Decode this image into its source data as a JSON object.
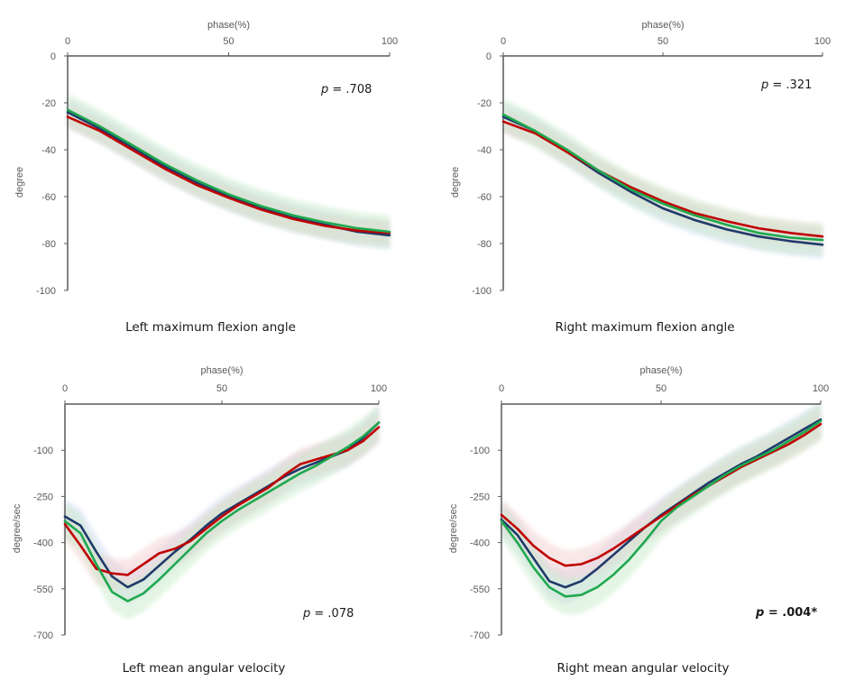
{
  "chart_data": [
    {
      "type": "line",
      "caption": "Left maximum flexion angle",
      "xlabel": "phase(%)",
      "ylabel": "degree",
      "xlim": [
        0,
        100
      ],
      "ylim": [
        -100,
        0
      ],
      "xticks": [
        0,
        50,
        100
      ],
      "yticks": [
        0,
        -20,
        -40,
        -60,
        -80,
        -100
      ],
      "x_axis_position": "top",
      "annotation": {
        "prefix": "p",
        "text": " = .708",
        "bold": false
      },
      "x": [
        0,
        10,
        20,
        30,
        40,
        50,
        60,
        70,
        80,
        90,
        100
      ],
      "series": [
        {
          "color": "#1f3a6b",
          "band_color": "#c9d4f2",
          "band": 6,
          "values": [
            -24,
            -31,
            -39,
            -47,
            -54,
            -60,
            -65,
            -69,
            -72,
            -75,
            -76.5
          ]
        },
        {
          "color": "#c00000",
          "band_color": "#f2caca",
          "band": 5,
          "values": [
            -26,
            -32,
            -40,
            -48,
            -55,
            -60.5,
            -65.5,
            -69.5,
            -72.5,
            -74.5,
            -75.5
          ]
        },
        {
          "color": "#1fa84f",
          "band_color": "#c6e8c6",
          "band": 7,
          "values": [
            -23,
            -30,
            -38,
            -46,
            -53,
            -59,
            -64,
            -68,
            -71,
            -73.5,
            -75
          ]
        }
      ]
    },
    {
      "type": "line",
      "caption": "Right maximum flexion angle",
      "xlabel": "phase(%)",
      "ylabel": "degree",
      "xlim": [
        0,
        100
      ],
      "ylim": [
        -100,
        0
      ],
      "xticks": [
        0,
        50,
        100
      ],
      "yticks": [
        0,
        -20,
        -40,
        -60,
        -80,
        -100
      ],
      "x_axis_position": "top",
      "annotation": {
        "prefix": "p",
        "text": " = .321",
        "bold": false
      },
      "x": [
        0,
        10,
        20,
        30,
        40,
        50,
        60,
        70,
        80,
        90,
        100
      ],
      "series": [
        {
          "color": "#1f3a6b",
          "band_color": "#c9d4f2",
          "band": 6,
          "values": [
            -26,
            -32,
            -41,
            -50,
            -58,
            -65,
            -70,
            -74,
            -77,
            -79,
            -80.5
          ]
        },
        {
          "color": "#c00000",
          "band_color": "#f2caca",
          "band": 5,
          "values": [
            -28,
            -33,
            -41,
            -49,
            -56,
            -62,
            -67,
            -70.5,
            -73.5,
            -75.5,
            -77
          ]
        },
        {
          "color": "#1fa84f",
          "band_color": "#c6e8c6",
          "band": 7,
          "values": [
            -25,
            -32,
            -40,
            -49,
            -57,
            -63,
            -68,
            -72,
            -75.5,
            -77.5,
            -78.5
          ]
        }
      ]
    },
    {
      "type": "line",
      "caption": "Left mean angular velocity",
      "xlabel": "phase(%)",
      "ylabel": "degree/sec",
      "xlim": [
        0,
        100
      ],
      "ylim": [
        -700,
        50
      ],
      "xticks": [
        0,
        50,
        100
      ],
      "yticks": [
        -100,
        -250,
        -400,
        -550,
        -700
      ],
      "x_axis_position": "top",
      "annotation": {
        "prefix": "p",
        "text": " = .078",
        "bold": false
      },
      "x": [
        0,
        5,
        10,
        15,
        20,
        25,
        30,
        35,
        40,
        45,
        50,
        55,
        60,
        65,
        70,
        75,
        80,
        85,
        90,
        95,
        100
      ],
      "series": [
        {
          "color": "#1f3a6b",
          "band_color": "#c9d4f2",
          "band": 55,
          "values": [
            -315,
            -345,
            -430,
            -510,
            -545,
            -520,
            -475,
            -430,
            -390,
            -345,
            -305,
            -275,
            -245,
            -215,
            -185,
            -160,
            -140,
            -120,
            -100,
            -60,
            -10
          ]
        },
        {
          "color": "#c00000",
          "band_color": "#f2caca",
          "band": 50,
          "values": [
            -340,
            -410,
            -485,
            -500,
            -505,
            -470,
            -435,
            -420,
            -395,
            -355,
            -315,
            -280,
            -250,
            -220,
            -180,
            -145,
            -130,
            -115,
            -100,
            -70,
            -25
          ]
        },
        {
          "color": "#1fa84f",
          "band_color": "#c6e8c6",
          "band": 60,
          "values": [
            -330,
            -370,
            -470,
            -560,
            -590,
            -565,
            -520,
            -470,
            -420,
            -370,
            -330,
            -295,
            -265,
            -235,
            -205,
            -175,
            -150,
            -120,
            -90,
            -55,
            -10
          ]
        }
      ]
    },
    {
      "type": "line",
      "caption": "Right mean angular velocity",
      "xlabel": "phase(%)",
      "ylabel": "degree/sec",
      "xlim": [
        0,
        100
      ],
      "ylim": [
        -700,
        50
      ],
      "xticks": [
        0,
        50,
        100
      ],
      "yticks": [
        -100,
        -250,
        -400,
        -550,
        -700
      ],
      "x_axis_position": "top",
      "annotation": {
        "prefix": "p",
        "text": " = .004*",
        "bold": true
      },
      "x": [
        0,
        5,
        10,
        15,
        20,
        25,
        30,
        35,
        40,
        45,
        50,
        55,
        60,
        65,
        70,
        75,
        80,
        85,
        90,
        95,
        100
      ],
      "series": [
        {
          "color": "#1f3a6b",
          "band_color": "#c9d4f2",
          "band": 55,
          "values": [
            -325,
            -375,
            -450,
            -525,
            -545,
            -525,
            -485,
            -440,
            -395,
            -350,
            -310,
            -275,
            -240,
            -205,
            -175,
            -145,
            -120,
            -90,
            -60,
            -30,
            0
          ]
        },
        {
          "color": "#c00000",
          "band_color": "#f2caca",
          "band": 50,
          "values": [
            -310,
            -355,
            -410,
            -450,
            -475,
            -470,
            -450,
            -420,
            -385,
            -350,
            -315,
            -280,
            -245,
            -215,
            -185,
            -155,
            -130,
            -105,
            -80,
            -50,
            -15
          ]
        },
        {
          "color": "#1fa84f",
          "band_color": "#c6e8c6",
          "band": 60,
          "values": [
            -330,
            -400,
            -480,
            -545,
            -575,
            -570,
            -545,
            -505,
            -455,
            -395,
            -330,
            -285,
            -250,
            -215,
            -180,
            -150,
            -125,
            -100,
            -70,
            -40,
            -5
          ]
        }
      ]
    }
  ]
}
